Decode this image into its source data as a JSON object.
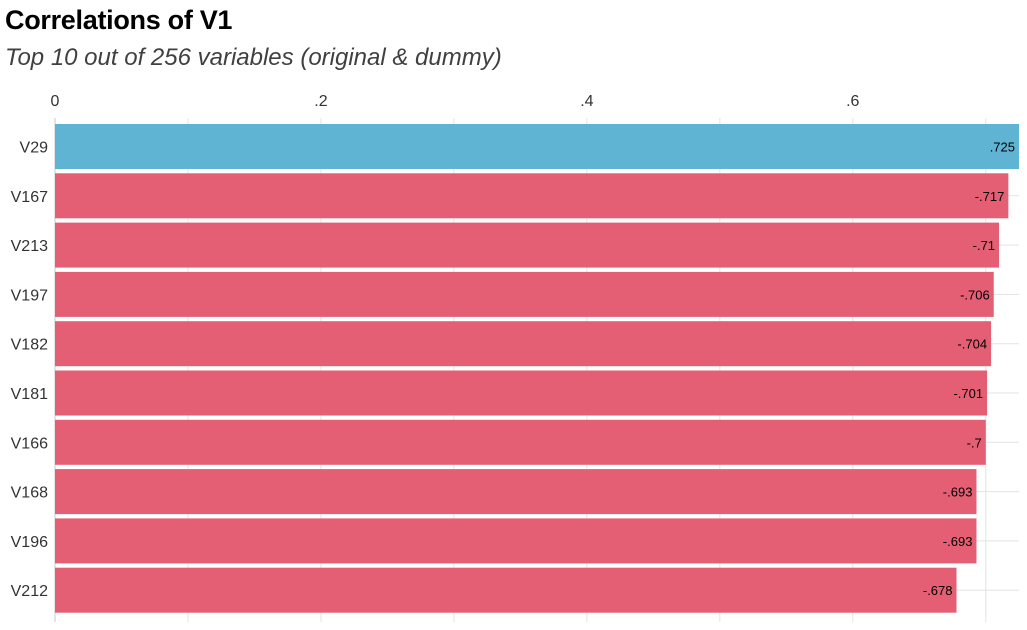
{
  "chart_data": {
    "type": "bar",
    "orientation": "horizontal",
    "title": "Correlations of V1",
    "subtitle": "Top 10 out of 256 variables (original & dummy)",
    "x_ticks": [
      {
        "value": 0,
        "label": "0"
      },
      {
        "value": 0.2,
        "label": ".2"
      },
      {
        "value": 0.4,
        "label": ".4"
      },
      {
        "value": 0.6,
        "label": ".6"
      }
    ],
    "xlim": [
      0,
      0.725
    ],
    "grid": true,
    "colors": {
      "positive": "#5fb3d3",
      "negative": "#e45f73"
    },
    "categories": [
      "V29",
      "V167",
      "V213",
      "V197",
      "V182",
      "V181",
      "V166",
      "V168",
      "V196",
      "V212"
    ],
    "values": [
      0.725,
      -0.717,
      -0.71,
      -0.706,
      -0.704,
      -0.701,
      -0.7,
      -0.693,
      -0.693,
      -0.678
    ],
    "value_labels": [
      ".725",
      "-.717",
      "-.71",
      "-.706",
      "-.704",
      "-.701",
      "-.7",
      "-.693",
      "-.693",
      "-.678"
    ]
  }
}
